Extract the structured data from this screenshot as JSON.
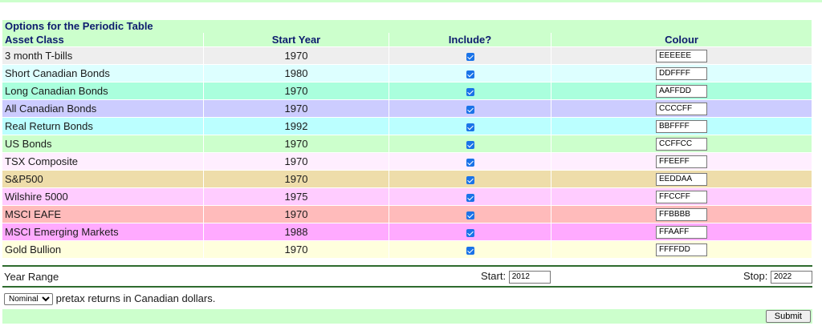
{
  "table": {
    "title": "Options for the Periodic Table",
    "headers": {
      "asset_class": "Asset Class",
      "start_year": "Start Year",
      "include": "Include?",
      "colour": "Colour"
    },
    "rows": [
      {
        "name": "3 month T-bills",
        "year": "1970",
        "include": true,
        "colour": "EEEEEE",
        "bg": "#EEEEEE"
      },
      {
        "name": "Short Canadian Bonds",
        "year": "1980",
        "include": true,
        "colour": "DDFFFF",
        "bg": "#DDFFFF"
      },
      {
        "name": "Long Canadian Bonds",
        "year": "1970",
        "include": true,
        "colour": "AAFFDD",
        "bg": "#AAFFDD"
      },
      {
        "name": "All Canadian Bonds",
        "year": "1970",
        "include": true,
        "colour": "CCCCFF",
        "bg": "#CCCCFF"
      },
      {
        "name": "Real Return Bonds",
        "year": "1992",
        "include": true,
        "colour": "BBFFFF",
        "bg": "#BBFFFF"
      },
      {
        "name": "US Bonds",
        "year": "1970",
        "include": true,
        "colour": "CCFFCC",
        "bg": "#CCFFCC"
      },
      {
        "name": "TSX Composite",
        "year": "1970",
        "include": true,
        "colour": "FFEEFF",
        "bg": "#FFEEFF"
      },
      {
        "name": "S&P500",
        "year": "1970",
        "include": true,
        "colour": "EEDDAA",
        "bg": "#EEDDAA"
      },
      {
        "name": "Wilshire 5000",
        "year": "1975",
        "include": true,
        "colour": "FFCCFF",
        "bg": "#FFCCFF"
      },
      {
        "name": "MSCI EAFE",
        "year": "1970",
        "include": true,
        "colour": "FFBBBB",
        "bg": "#FFBBBB"
      },
      {
        "name": "MSCI Emerging Markets",
        "year": "1988",
        "include": true,
        "colour": "FFAAFF",
        "bg": "#FFAAFF"
      },
      {
        "name": "Gold Bullion",
        "year": "1970",
        "include": true,
        "colour": "FFFFDD",
        "bg": "#FFFFDD"
      }
    ]
  },
  "year_range": {
    "label": "Year Range",
    "start_label": "Start:",
    "start_value": "2012",
    "stop_label": "Stop:",
    "stop_value": "2022"
  },
  "returns": {
    "mode_selected": "Nominal",
    "description": "pretax returns in Canadian dollars."
  },
  "submit_label": "Submit",
  "colors": {
    "header_bg": "#CCFFCC",
    "header_text": "#0D1B6E",
    "rule": "#2E6B2E",
    "checkbox": "#1A73E8"
  }
}
